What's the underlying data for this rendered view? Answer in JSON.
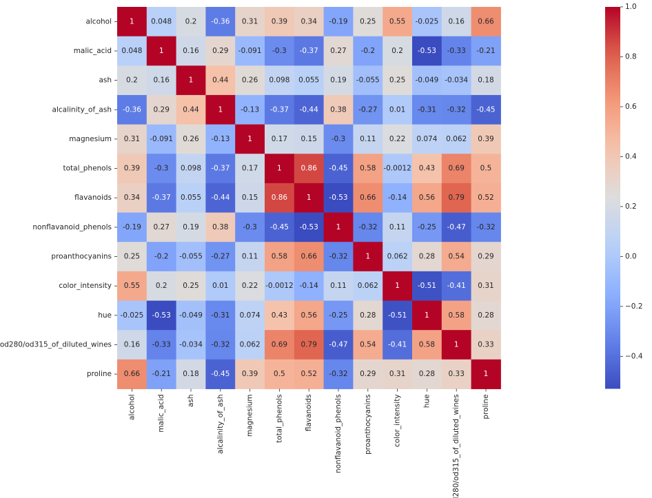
{
  "chart_data": {
    "type": "heatmap",
    "colormap": "coolwarm",
    "annotated": true,
    "labels": [
      "alcohol",
      "malic_acid",
      "ash",
      "alcalinity_of_ash",
      "magnesium",
      "total_phenols",
      "flavanoids",
      "nonflavanoid_phenols",
      "proanthocyanins",
      "color_intensity",
      "hue",
      "od280/od315_of_diluted_wines",
      "proline"
    ],
    "values": [
      [
        1,
        0.048,
        0.2,
        -0.36,
        0.31,
        0.39,
        0.34,
        -0.19,
        0.25,
        0.55,
        -0.025,
        0.16,
        0.66
      ],
      [
        0.048,
        1,
        0.16,
        0.29,
        -0.091,
        -0.3,
        -0.37,
        0.27,
        -0.2,
        0.2,
        -0.53,
        -0.33,
        -0.21
      ],
      [
        0.2,
        0.16,
        1,
        0.44,
        0.26,
        0.098,
        0.055,
        0.19,
        -0.055,
        0.25,
        -0.049,
        -0.034,
        0.18
      ],
      [
        -0.36,
        0.29,
        0.44,
        1,
        -0.13,
        -0.37,
        -0.44,
        0.38,
        -0.27,
        0.01,
        -0.31,
        -0.32,
        -0.45
      ],
      [
        0.31,
        -0.091,
        0.26,
        -0.13,
        1,
        0.17,
        0.15,
        -0.3,
        0.11,
        0.22,
        0.074,
        0.062,
        0.39
      ],
      [
        0.39,
        -0.3,
        0.098,
        -0.37,
        0.17,
        1,
        0.86,
        -0.45,
        0.58,
        -0.0012,
        0.43,
        0.69,
        0.5
      ],
      [
        0.34,
        -0.37,
        0.055,
        -0.44,
        0.15,
        0.86,
        1,
        -0.53,
        0.66,
        -0.14,
        0.56,
        0.79,
        0.52
      ],
      [
        -0.19,
        0.27,
        0.19,
        0.38,
        -0.3,
        -0.45,
        -0.53,
        1,
        -0.32,
        0.11,
        -0.25,
        -0.47,
        -0.32
      ],
      [
        0.25,
        -0.2,
        -0.055,
        -0.27,
        0.11,
        0.58,
        0.66,
        -0.32,
        1,
        0.062,
        0.28,
        0.54,
        0.29
      ],
      [
        0.55,
        0.2,
        0.25,
        0.01,
        0.22,
        -0.0012,
        -0.14,
        0.11,
        0.062,
        1,
        -0.51,
        -0.41,
        0.31
      ],
      [
        -0.025,
        -0.53,
        -0.049,
        -0.31,
        0.074,
        0.43,
        0.56,
        -0.25,
        0.28,
        -0.51,
        1,
        0.58,
        0.28
      ],
      [
        0.16,
        -0.33,
        -0.034,
        -0.32,
        0.062,
        0.69,
        0.79,
        -0.47,
        0.54,
        -0.41,
        0.58,
        1,
        0.33
      ],
      [
        0.66,
        -0.21,
        0.18,
        -0.45,
        0.39,
        0.5,
        0.52,
        -0.32,
        0.29,
        0.31,
        0.28,
        0.33,
        1
      ]
    ],
    "vmin": -0.53,
    "vmax": 1.0,
    "colorbar_ticks": [
      "1.0",
      "0.8",
      "0.6",
      "0.4",
      "0.2",
      "0.0",
      "−0.2",
      "−0.4"
    ],
    "colorbar_tick_values": [
      1.0,
      0.8,
      0.6,
      0.4,
      0.2,
      0.0,
      -0.2,
      -0.4
    ]
  }
}
